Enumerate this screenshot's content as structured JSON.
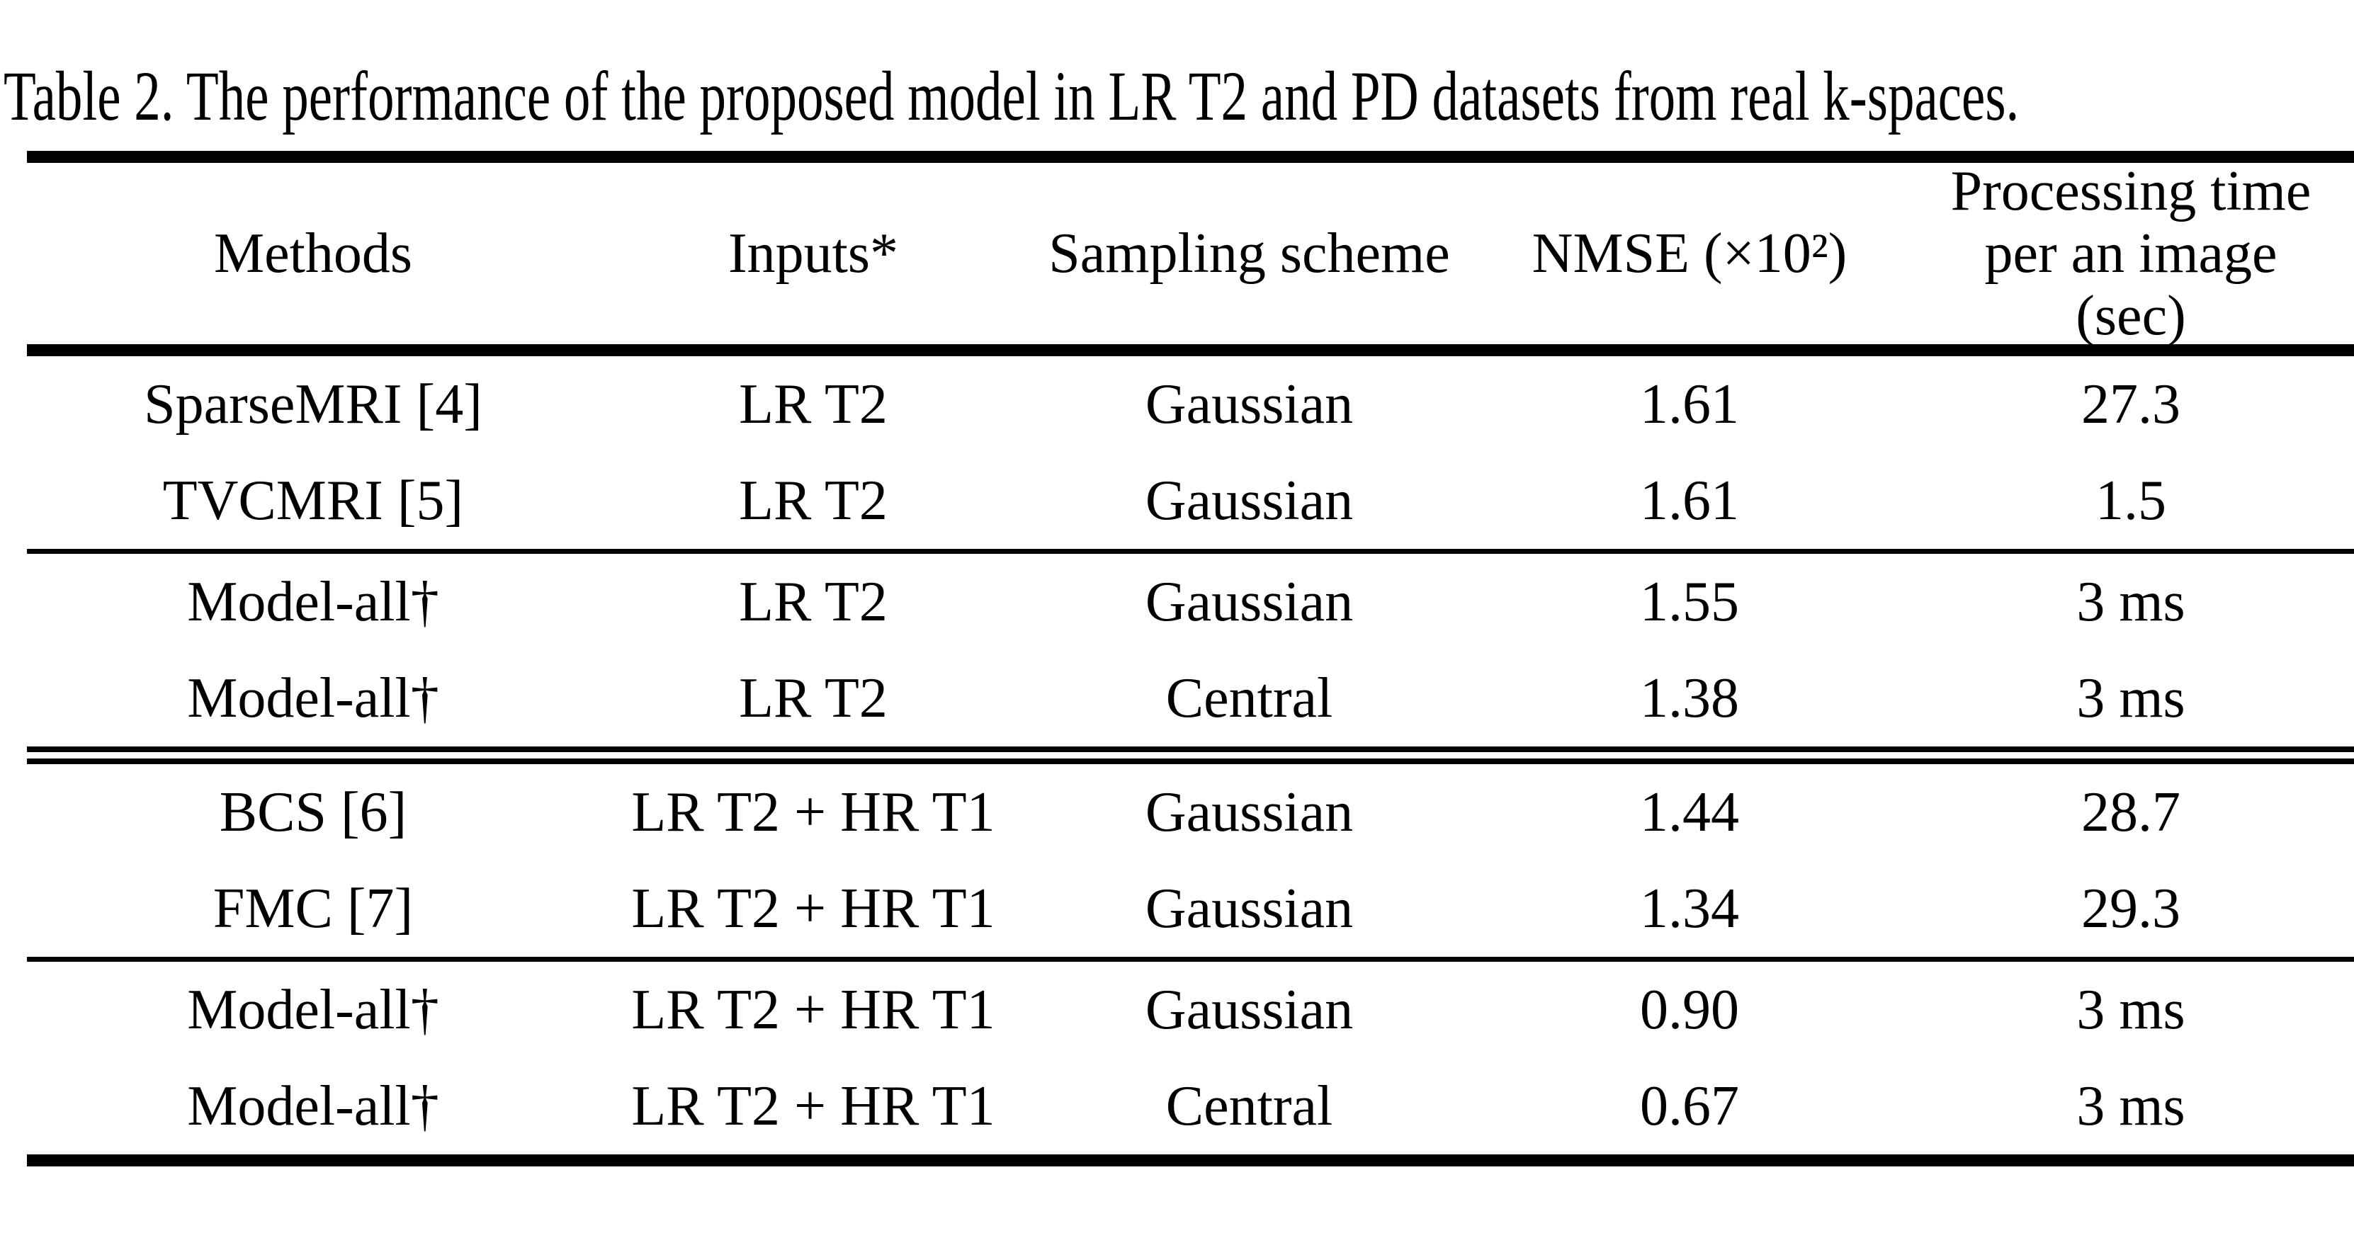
{
  "title": "Table 2. The performance of the proposed model in LR T2 and PD datasets from real k-spaces.",
  "table": {
    "columns": {
      "methods": "Methods",
      "inputs": "Inputs*",
      "sampling": "Sampling scheme",
      "nmse": "NMSE (×10²)",
      "time": "Processing time\nper an image\n(sec)"
    },
    "rows": [
      {
        "method": "SparseMRI [4]",
        "inputs": "LR T2",
        "sampling": "Gaussian",
        "nmse": "1.61",
        "time": "27.3"
      },
      {
        "method": "TVCMRI [5]",
        "inputs": "LR T2",
        "sampling": "Gaussian",
        "nmse": "1.61",
        "time": "1.5"
      },
      {
        "method": "Model-all†",
        "inputs": "LR T2",
        "sampling": "Gaussian",
        "nmse": "1.55",
        "time": "3 ms"
      },
      {
        "method": "Model-all†",
        "inputs": "LR T2",
        "sampling": "Central",
        "nmse": "1.38",
        "time": "3 ms"
      },
      {
        "method": "BCS [6]",
        "inputs": "LR T2 + HR T1",
        "sampling": "Gaussian",
        "nmse": "1.44",
        "time": "28.7"
      },
      {
        "method": "FMC [7]",
        "inputs": "LR T2 + HR T1",
        "sampling": "Gaussian",
        "nmse": "1.34",
        "time": "29.3"
      },
      {
        "method": "Model-all†",
        "inputs": "LR T2 + HR T1",
        "sampling": "Gaussian",
        "nmse": "0.90",
        "time": "3 ms"
      },
      {
        "method": "Model-all†",
        "inputs": "LR T2 + HR T1",
        "sampling": "Central",
        "nmse": "0.67",
        "time": "3 ms"
      }
    ],
    "colors": {
      "text": "#000000",
      "background": "#ffffff",
      "rule": "#000000"
    }
  }
}
